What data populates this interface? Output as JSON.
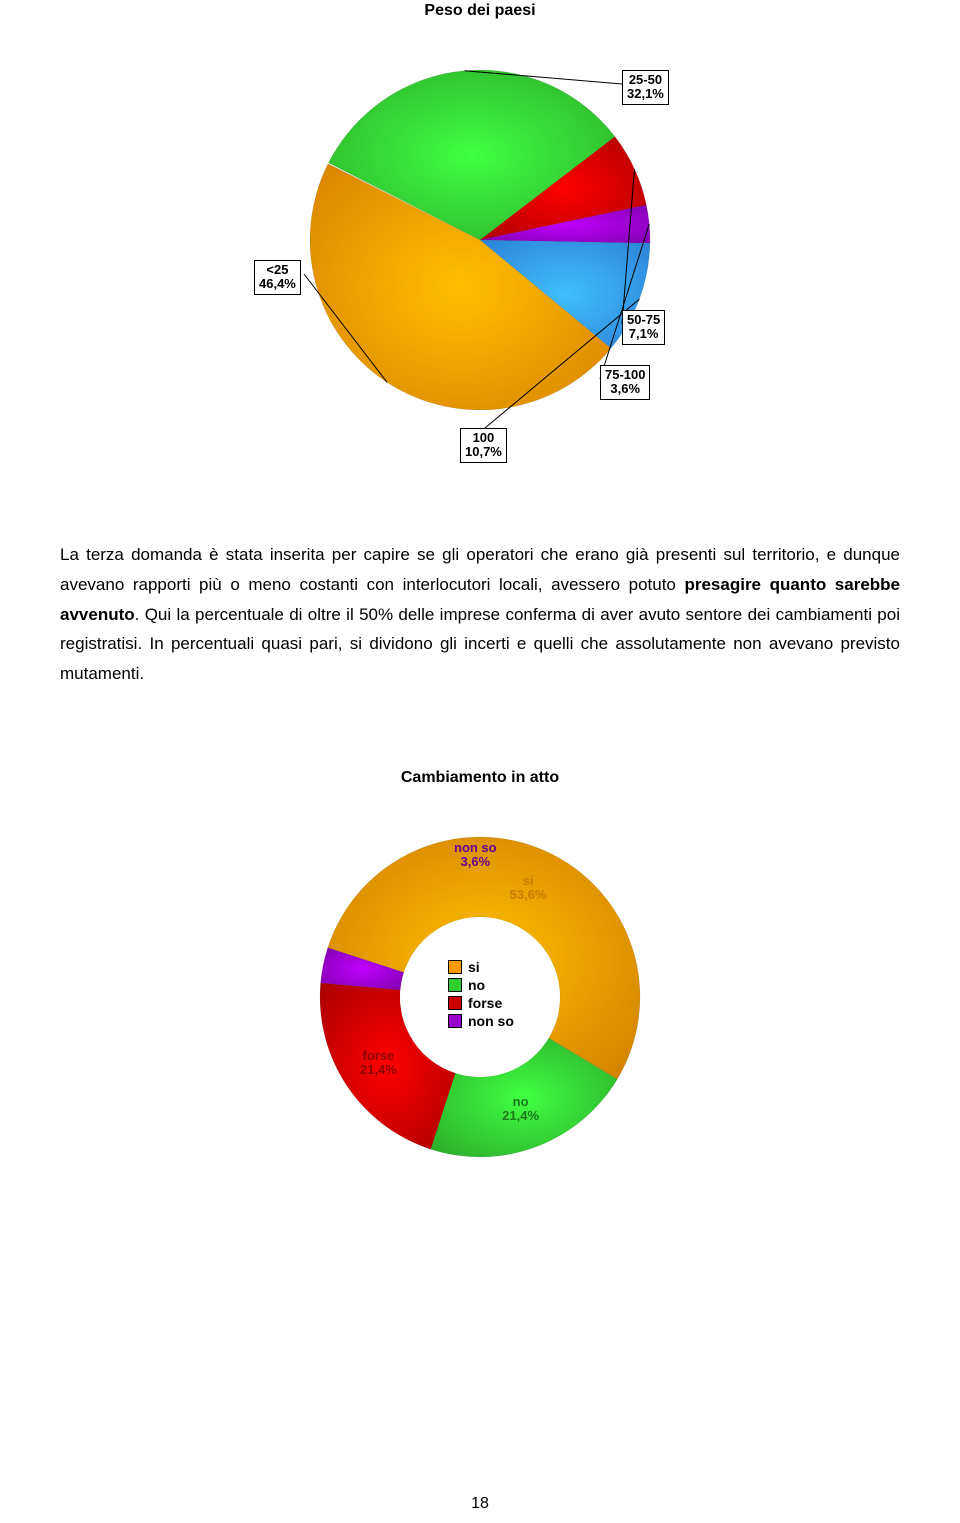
{
  "chart1": {
    "type": "pie",
    "title": "Peso dei paesi",
    "background_color": "#ffffff",
    "radius": 170,
    "slices": [
      {
        "label": "25-50",
        "pct_text": "32,1%",
        "value": 32.1,
        "color": "#33cc33"
      },
      {
        "label": "50-75",
        "pct_text": "7,1%",
        "value": 7.1,
        "color": "#cc0000"
      },
      {
        "label": "75-100",
        "pct_text": "3,6%",
        "value": 3.6,
        "color": "#9900cc"
      },
      {
        "label": "100",
        "pct_text": "10,7%",
        "value": 10.7,
        "color": "#3399ff"
      },
      {
        "label": "<25",
        "pct_text": "46,4%",
        "value": 46.4,
        "color": "#ff9900"
      }
    ],
    "start_angle_deg": -63
  },
  "paragraph": {
    "p1a": "La terza domanda è stata inserita per capire se gli operatori che erano già presenti sul territorio, e dunque avevano rapporti più o meno costanti con interlocutori locali, avessero potuto ",
    "p1b": "presagire quanto sarebbe avvenuto",
    "p1c": ". Qui la percentuale di oltre il 50% delle imprese conferma di aver avuto sentore dei cambiamenti poi registratisi. In percentuali quasi pari, si dividono gli incerti e quelli che assolutamente non avevano previsto mutamenti."
  },
  "chart2": {
    "type": "donut",
    "title": "Cambiamento in atto",
    "background_color": "#ffffff",
    "outer_radius": 160,
    "inner_radius": 80,
    "slices": [
      {
        "label": "non so",
        "pct_text": "3,6%",
        "value": 3.6,
        "color": "#9900cc",
        "label_color": "#660099"
      },
      {
        "label": "si",
        "pct_text": "53,6%",
        "value": 53.6,
        "color": "#ff9900",
        "label_color": "#cc7a00"
      },
      {
        "label": "no",
        "pct_text": "21,4%",
        "value": 21.4,
        "color": "#33cc33",
        "label_color": "#1e7a1e"
      },
      {
        "label": "forse",
        "pct_text": "21,4%",
        "value": 21.4,
        "color": "#cc0000",
        "label_color": "#8b0000"
      }
    ],
    "start_angle_deg": -85,
    "legend": {
      "items": [
        {
          "label": "si",
          "color": "#ff9900"
        },
        {
          "label": "no",
          "color": "#33cc33"
        },
        {
          "label": "forse",
          "color": "#cc0000"
        },
        {
          "label": "non so",
          "color": "#9900cc"
        }
      ]
    }
  },
  "page_number": "18"
}
